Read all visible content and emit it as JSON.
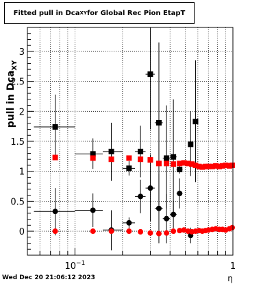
{
  "title": {
    "prefix": "Fitted pull in Dca",
    "subscript": "XY",
    "suffix": " for Global Rec Pion EtapT"
  },
  "footer": "Wed Dec 20 21:06:12 2023",
  "chart_data": {
    "type": "scatter",
    "title": "Fitted pull in Dca_XY for Global Rec Pion EtapT",
    "xlabel": "η",
    "ylabel": "pull in Dca_XY",
    "ylabel_main": "pull in Dca",
    "ylabel_sub": "XY",
    "xscale": "log",
    "xlim": [
      0.05,
      1.0
    ],
    "ylim": [
      -0.4,
      3.4
    ],
    "grid": true,
    "x_ticks": [
      {
        "value": 0.1,
        "label": "10",
        "exp": "−1"
      },
      {
        "value": 1.0,
        "label": "1",
        "exp": ""
      }
    ],
    "y_ticks": [
      {
        "value": 0,
        "label": "0"
      },
      {
        "value": 0.5,
        "label": "0.5"
      },
      {
        "value": 1,
        "label": "1"
      },
      {
        "value": 1.5,
        "label": "1.5"
      },
      {
        "value": 2,
        "label": "2"
      },
      {
        "value": 2.5,
        "label": "2.5"
      },
      {
        "value": 3,
        "label": "3"
      }
    ],
    "series": [
      {
        "marker": "square",
        "color": "#000000",
        "points": [
          {
            "x": 0.075,
            "y": 1.74,
            "xlo": 0.055,
            "xhi": 0.1,
            "ylo": 1.2,
            "yhi": 2.28
          },
          {
            "x": 0.13,
            "y": 1.29,
            "xlo": 0.1,
            "xhi": 0.15,
            "ylo": 1.04,
            "yhi": 1.55
          },
          {
            "x": 0.17,
            "y": 1.33,
            "xlo": 0.15,
            "xhi": 0.2,
            "ylo": 0.84,
            "yhi": 1.81
          },
          {
            "x": 0.22,
            "y": 1.05,
            "xlo": 0.2,
            "xhi": 0.24,
            "ylo": 0.93,
            "yhi": 1.17
          },
          {
            "x": 0.26,
            "y": 1.33,
            "xlo": 0.24,
            "xhi": 0.28,
            "ylo": 0.9,
            "yhi": 1.76
          },
          {
            "x": 0.3,
            "y": 2.62,
            "xlo": 0.28,
            "xhi": 0.32,
            "ylo": 1.7,
            "yhi": 3.5
          },
          {
            "x": 0.34,
            "y": 1.81,
            "xlo": 0.32,
            "xhi": 0.36,
            "ylo": 0.43,
            "yhi": 3.15
          },
          {
            "x": 0.38,
            "y": 1.22,
            "xlo": 0.36,
            "xhi": 0.4,
            "ylo": 0.38,
            "yhi": 2.1
          },
          {
            "x": 0.42,
            "y": 1.24,
            "xlo": 0.4,
            "xhi": 0.44,
            "ylo": 0.28,
            "yhi": 2.2
          },
          {
            "x": 0.46,
            "y": 1.03,
            "xlo": 0.44,
            "xhi": 0.48,
            "ylo": 0.96,
            "yhi": 1.1
          },
          {
            "x": 0.54,
            "y": 1.45,
            "xlo": 0.52,
            "xhi": 0.56,
            "ylo": 0.92,
            "yhi": 2.0
          },
          {
            "x": 0.58,
            "y": 1.83,
            "xlo": 0.56,
            "xhi": 0.6,
            "ylo": 0.82,
            "yhi": 2.85
          }
        ]
      },
      {
        "marker": "circle",
        "color": "#000000",
        "points": [
          {
            "x": 0.075,
            "y": 0.33,
            "xlo": 0.055,
            "xhi": 0.1,
            "ylo": -0.07,
            "yhi": 0.72
          },
          {
            "x": 0.13,
            "y": 0.35,
            "xlo": 0.1,
            "xhi": 0.15,
            "ylo": 0.07,
            "yhi": 0.63
          },
          {
            "x": 0.17,
            "y": 0.02,
            "xlo": 0.15,
            "xhi": 0.2,
            "ylo": -0.32,
            "yhi": 0.35
          },
          {
            "x": 0.22,
            "y": 0.14,
            "xlo": 0.2,
            "xhi": 0.24,
            "ylo": 0.05,
            "yhi": 0.23
          },
          {
            "x": 0.26,
            "y": 0.58,
            "xlo": 0.24,
            "xhi": 0.28,
            "ylo": 0.3,
            "yhi": 0.86
          },
          {
            "x": 0.3,
            "y": 0.72,
            "xlo": 0.28,
            "xhi": 0.32,
            "ylo": 0.16,
            "yhi": 1.28
          },
          {
            "x": 0.34,
            "y": 0.38,
            "xlo": 0.32,
            "xhi": 0.36,
            "ylo": -0.2,
            "yhi": 0.96
          },
          {
            "x": 0.38,
            "y": 0.21,
            "xlo": 0.36,
            "xhi": 0.4,
            "ylo": -0.2,
            "yhi": 0.62
          },
          {
            "x": 0.42,
            "y": 0.28,
            "xlo": 0.4,
            "xhi": 0.44,
            "ylo": 0.05,
            "yhi": 0.51
          },
          {
            "x": 0.46,
            "y": 0.63,
            "xlo": 0.44,
            "xhi": 0.48,
            "ylo": 0.38,
            "yhi": 0.88
          },
          {
            "x": 0.54,
            "y": -0.07,
            "xlo": 0.52,
            "xhi": 0.56,
            "ylo": -0.2,
            "yhi": 0.06
          }
        ]
      },
      {
        "marker": "square",
        "color": "#ff0000",
        "points": [
          {
            "x": 0.075,
            "y": 1.23
          },
          {
            "x": 0.13,
            "y": 1.22
          },
          {
            "x": 0.17,
            "y": 1.2
          },
          {
            "x": 0.22,
            "y": 1.22
          },
          {
            "x": 0.26,
            "y": 1.2
          },
          {
            "x": 0.3,
            "y": 1.19
          },
          {
            "x": 0.34,
            "y": 1.13
          },
          {
            "x": 0.38,
            "y": 1.13
          },
          {
            "x": 0.42,
            "y": 1.12
          },
          {
            "x": 0.46,
            "y": 1.13
          },
          {
            "x": 0.49,
            "y": 1.14
          },
          {
            "x": 0.52,
            "y": 1.13
          },
          {
            "x": 0.55,
            "y": 1.12
          },
          {
            "x": 0.58,
            "y": 1.1
          },
          {
            "x": 0.61,
            "y": 1.08
          },
          {
            "x": 0.64,
            "y": 1.07
          },
          {
            "x": 0.67,
            "y": 1.08
          },
          {
            "x": 0.7,
            "y": 1.08
          },
          {
            "x": 0.74,
            "y": 1.08
          },
          {
            "x": 0.78,
            "y": 1.09
          },
          {
            "x": 0.82,
            "y": 1.08
          },
          {
            "x": 0.86,
            "y": 1.09
          },
          {
            "x": 0.9,
            "y": 1.1
          },
          {
            "x": 0.95,
            "y": 1.09
          },
          {
            "x": 0.99,
            "y": 1.1
          }
        ]
      },
      {
        "marker": "circle",
        "color": "#ff0000",
        "points": [
          {
            "x": 0.075,
            "y": 0.0
          },
          {
            "x": 0.13,
            "y": 0.0
          },
          {
            "x": 0.17,
            "y": 0.0
          },
          {
            "x": 0.22,
            "y": 0.0
          },
          {
            "x": 0.26,
            "y": -0.01
          },
          {
            "x": 0.3,
            "y": -0.03
          },
          {
            "x": 0.34,
            "y": -0.04
          },
          {
            "x": 0.38,
            "y": -0.03
          },
          {
            "x": 0.42,
            "y": 0.0
          },
          {
            "x": 0.46,
            "y": 0.01
          },
          {
            "x": 0.49,
            "y": 0.02
          },
          {
            "x": 0.52,
            "y": 0.0
          },
          {
            "x": 0.55,
            "y": -0.01
          },
          {
            "x": 0.58,
            "y": 0.0
          },
          {
            "x": 0.61,
            "y": 0.01
          },
          {
            "x": 0.64,
            "y": 0.0
          },
          {
            "x": 0.67,
            "y": 0.01
          },
          {
            "x": 0.7,
            "y": 0.02
          },
          {
            "x": 0.74,
            "y": 0.03
          },
          {
            "x": 0.78,
            "y": 0.04
          },
          {
            "x": 0.82,
            "y": 0.03
          },
          {
            "x": 0.86,
            "y": 0.03
          },
          {
            "x": 0.9,
            "y": 0.02
          },
          {
            "x": 0.95,
            "y": 0.04
          },
          {
            "x": 0.99,
            "y": 0.06
          }
        ]
      }
    ]
  }
}
